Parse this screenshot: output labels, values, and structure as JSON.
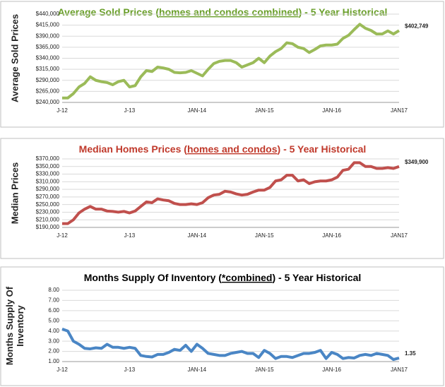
{
  "chart_data": [
    {
      "type": "line",
      "title": [
        "Average Sold Prices (",
        "homes and condos combined",
        ") - 5 Year Historical"
      ],
      "title_color": "#6a9f2a",
      "ylabel": [
        "Average Sold Prices"
      ],
      "color": "#9bbb59",
      "categories": [
        "J-12",
        null,
        null,
        null,
        null,
        null,
        null,
        null,
        null,
        null,
        null,
        null,
        "J-13",
        null,
        null,
        null,
        null,
        null,
        null,
        null,
        null,
        null,
        null,
        null,
        "JAN-14",
        null,
        null,
        null,
        null,
        null,
        null,
        null,
        null,
        null,
        null,
        null,
        "JAN-15",
        null,
        null,
        null,
        null,
        null,
        null,
        null,
        null,
        null,
        null,
        null,
        "JAN-16",
        null,
        null,
        null,
        null,
        null,
        null,
        null,
        null,
        null,
        null,
        null,
        "JAN17"
      ],
      "values": [
        250000,
        250000,
        260000,
        275000,
        283000,
        298000,
        290000,
        287000,
        285000,
        280000,
        287000,
        290000,
        275000,
        278000,
        298000,
        312000,
        310000,
        320000,
        318000,
        315000,
        308000,
        307000,
        308000,
        312000,
        306000,
        300000,
        315000,
        328000,
        333000,
        335000,
        335000,
        330000,
        320000,
        325000,
        330000,
        340000,
        330000,
        345000,
        355000,
        362000,
        375000,
        373000,
        365000,
        362000,
        353000,
        360000,
        368000,
        370000,
        370000,
        372000,
        385000,
        392000,
        405000,
        417000,
        408000,
        403000,
        395000,
        395000,
        402000,
        395000,
        402749
      ],
      "value_labels": [
        null,
        null,
        null,
        null,
        null,
        null,
        null,
        null,
        null,
        null,
        null,
        null,
        null,
        null,
        null,
        null,
        null,
        null,
        null,
        null,
        null,
        null,
        null,
        null,
        null,
        null,
        null,
        null,
        null,
        null,
        null,
        null,
        null,
        null,
        null,
        null,
        null,
        null,
        null,
        null,
        null,
        null,
        null,
        null,
        null,
        null,
        null,
        null,
        null,
        null,
        null,
        null,
        null,
        null,
        null,
        null,
        null,
        null,
        null,
        null,
        "$402,749"
      ],
      "ylim": [
        240000,
        440000
      ],
      "yticks": [
        {
          "value": 240000,
          "label": "$240,000"
        },
        {
          "value": 265000,
          "label": "$265,000"
        },
        {
          "value": 290000,
          "label": "$290,000"
        },
        {
          "value": 315000,
          "label": "$315,000"
        },
        {
          "value": 340000,
          "label": "$340,000"
        },
        {
          "value": 365000,
          "label": "$365,000"
        },
        {
          "value": 390000,
          "label": "$390,000"
        },
        {
          "value": 415000,
          "label": "$415,000"
        },
        {
          "value": 440000,
          "label": "$440,000"
        }
      ],
      "grid": true
    },
    {
      "type": "line",
      "title": [
        "Median Homes Prices (",
        "homes and condos",
        ") - 5 Year Historical"
      ],
      "title_color": "#c0392b",
      "ylabel": [
        "Median Prices"
      ],
      "color": "#c0504d",
      "categories": [
        "J-12",
        null,
        null,
        null,
        null,
        null,
        null,
        null,
        null,
        null,
        null,
        null,
        "J-13",
        null,
        null,
        null,
        null,
        null,
        null,
        null,
        null,
        null,
        null,
        null,
        "JAN-14",
        null,
        null,
        null,
        null,
        null,
        null,
        null,
        null,
        null,
        null,
        null,
        "JAN-15",
        null,
        null,
        null,
        null,
        null,
        null,
        null,
        null,
        null,
        null,
        null,
        "JAN-16",
        null,
        null,
        null,
        null,
        null,
        null,
        null,
        null,
        null,
        null,
        null,
        "JAN17"
      ],
      "values": [
        200000,
        200000,
        210000,
        228000,
        238000,
        245000,
        238000,
        238000,
        233000,
        232000,
        230000,
        232000,
        228000,
        233000,
        245000,
        257000,
        255000,
        265000,
        262000,
        260000,
        253000,
        250000,
        250000,
        252000,
        250000,
        255000,
        268000,
        275000,
        277000,
        285000,
        283000,
        278000,
        275000,
        277000,
        283000,
        288000,
        288000,
        295000,
        312000,
        315000,
        327000,
        327000,
        312000,
        315000,
        305000,
        310000,
        312000,
        312000,
        315000,
        322000,
        340000,
        343000,
        360000,
        360000,
        350000,
        350000,
        345000,
        345000,
        347000,
        345000,
        349900
      ],
      "value_labels": [
        null,
        null,
        null,
        null,
        null,
        null,
        null,
        null,
        null,
        null,
        null,
        null,
        null,
        null,
        null,
        null,
        null,
        null,
        null,
        null,
        null,
        null,
        null,
        null,
        null,
        null,
        null,
        null,
        null,
        null,
        null,
        null,
        null,
        null,
        null,
        null,
        null,
        null,
        null,
        null,
        null,
        null,
        null,
        null,
        null,
        null,
        null,
        null,
        null,
        null,
        null,
        null,
        null,
        null,
        null,
        null,
        null,
        null,
        null,
        null,
        "$349,900"
      ],
      "ylim": [
        190000,
        370000
      ],
      "yticks": [
        {
          "value": 190000,
          "label": "$190,000"
        },
        {
          "value": 210000,
          "label": "$210,000"
        },
        {
          "value": 230000,
          "label": "$230,000"
        },
        {
          "value": 250000,
          "label": "$250,000"
        },
        {
          "value": 270000,
          "label": "$270,000"
        },
        {
          "value": 290000,
          "label": "$290,000"
        },
        {
          "value": 310000,
          "label": "$310,000"
        },
        {
          "value": 330000,
          "label": "$330,000"
        },
        {
          "value": 350000,
          "label": "$350,000"
        },
        {
          "value": 370000,
          "label": "$370,000"
        }
      ],
      "grid": true
    },
    {
      "type": "line",
      "title": [
        "Months Supply Of Inventory (",
        "*combined",
        ") - 5 Year Historical"
      ],
      "title_color": "#000000",
      "ylabel": [
        "Months Supply Of",
        "Inventory"
      ],
      "color": "#4a86c5",
      "categories": [
        "J-12",
        null,
        null,
        null,
        null,
        null,
        null,
        null,
        null,
        null,
        null,
        null,
        "J-13",
        null,
        null,
        null,
        null,
        null,
        null,
        null,
        null,
        null,
        null,
        null,
        "JAN-14",
        null,
        null,
        null,
        null,
        null,
        null,
        null,
        null,
        null,
        null,
        null,
        "JAN-15",
        null,
        null,
        null,
        null,
        null,
        null,
        null,
        null,
        null,
        null,
        null,
        "JAN-16",
        null,
        null,
        null,
        null,
        null,
        null,
        null,
        null,
        null,
        null,
        null,
        "JAN17"
      ],
      "values": [
        4.2,
        4.0,
        3.0,
        2.7,
        2.3,
        2.25,
        2.35,
        2.3,
        2.7,
        2.4,
        2.4,
        2.3,
        2.4,
        2.3,
        1.6,
        1.5,
        1.45,
        1.7,
        1.7,
        1.9,
        2.2,
        2.1,
        2.6,
        2.0,
        2.7,
        2.3,
        1.8,
        1.7,
        1.6,
        1.6,
        1.8,
        1.9,
        2.0,
        1.8,
        1.8,
        1.4,
        2.1,
        1.8,
        1.3,
        1.5,
        1.5,
        1.4,
        1.6,
        1.8,
        1.8,
        1.9,
        2.1,
        1.3,
        1.9,
        1.7,
        1.3,
        1.4,
        1.35,
        1.6,
        1.7,
        1.6,
        1.8,
        1.7,
        1.6,
        1.2,
        1.35
      ],
      "value_labels": [
        null,
        null,
        null,
        null,
        null,
        null,
        null,
        null,
        null,
        null,
        null,
        null,
        null,
        null,
        null,
        null,
        null,
        null,
        null,
        null,
        null,
        null,
        null,
        null,
        null,
        null,
        null,
        null,
        null,
        null,
        null,
        null,
        null,
        null,
        null,
        null,
        null,
        null,
        null,
        null,
        null,
        null,
        null,
        null,
        null,
        null,
        null,
        null,
        null,
        null,
        null,
        null,
        null,
        null,
        null,
        null,
        null,
        null,
        null,
        null,
        "1.35"
      ],
      "ylim": [
        1,
        8
      ],
      "yticks": [
        {
          "value": 1,
          "label": "1.00"
        },
        {
          "value": 2,
          "label": "2.00"
        },
        {
          "value": 3,
          "label": "3.00"
        },
        {
          "value": 4,
          "label": "4.00"
        },
        {
          "value": 5,
          "label": "5.00"
        },
        {
          "value": 6,
          "label": "6.00"
        },
        {
          "value": 7,
          "label": "7.00"
        },
        {
          "value": 8,
          "label": "8.00"
        }
      ],
      "grid": true
    }
  ]
}
